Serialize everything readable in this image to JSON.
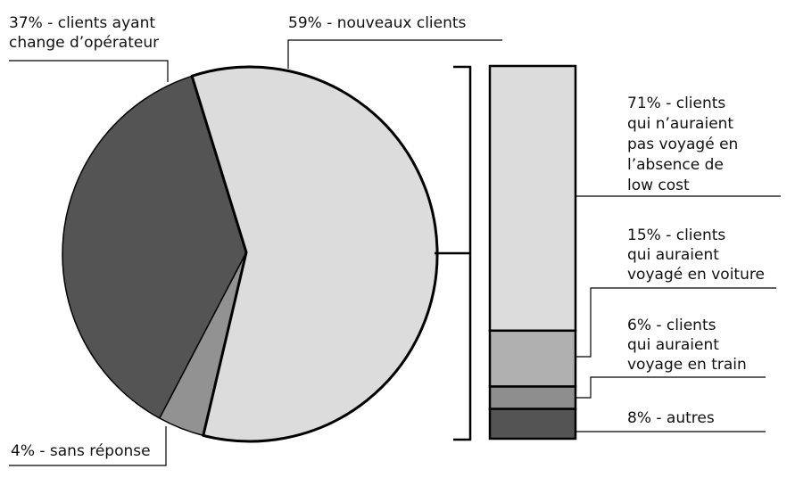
{
  "chart_data": [
    {
      "type": "pie",
      "slices": [
        {
          "key": "new",
          "value": 59,
          "color": "#dcdcdc",
          "label_lines": [
            "59% - nouveaux clients"
          ]
        },
        {
          "key": "noresp",
          "value": 4,
          "color": "#929292",
          "label_lines": [
            "4% -  sans réponse"
          ]
        },
        {
          "key": "switch",
          "value": 37,
          "color": "#545454",
          "label_lines": [
            "37% - clients ayant",
            "change d’opérateur"
          ]
        }
      ]
    },
    {
      "type": "bar",
      "stacked": true,
      "breakdown_of": "59% - nouveaux clients",
      "segments": [
        {
          "key": "nolowcost",
          "value": 71,
          "color": "#dcdcdc",
          "label_lines": [
            "71% - clients",
            "qui n’auraient",
            "pas voyagé en",
            "l’absence de",
            "low cost"
          ]
        },
        {
          "key": "car",
          "value": 15,
          "color": "#b0b0b0",
          "label_lines": [
            "15% - clients",
            "qui auraient",
            "voyagé en voiture"
          ]
        },
        {
          "key": "train",
          "value": 6,
          "color": "#8e8e8e",
          "label_lines": [
            "6% - clients",
            "qui auraient",
            "voyage en train"
          ]
        },
        {
          "key": "others",
          "value": 8,
          "color": "#545454",
          "label_lines": [
            "8% -  autres"
          ]
        }
      ]
    }
  ]
}
